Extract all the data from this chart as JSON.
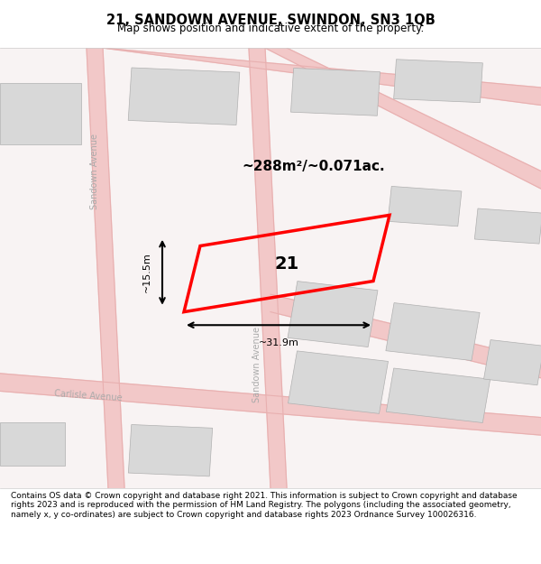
{
  "title": "21, SANDOWN AVENUE, SWINDON, SN3 1QB",
  "subtitle": "Map shows position and indicative extent of the property.",
  "footer": "Contains OS data © Crown copyright and database right 2021. This information is subject to Crown copyright and database rights 2023 and is reproduced with the permission of HM Land Registry. The polygons (including the associated geometry, namely x, y co-ordinates) are subject to Crown copyright and database rights 2023 Ordnance Survey 100026316.",
  "area_label": "~288m²/~0.071ac.",
  "number_label": "21",
  "dim_width": "~31.9m",
  "dim_height": "~15.5m",
  "bg_color": "#f5f0f0",
  "map_bg": "#f9f6f6",
  "road_color": "#f0c8c8",
  "building_color": "#d8d8d8",
  "highlight_color": "#ff0000",
  "road_line_color": "#e8a0a0",
  "street_label_color": "#aaaaaa",
  "street_label1": "Sandown Avenue",
  "street_label2": "Sandown Avenue",
  "street_label3": "Carlisle Avenue"
}
